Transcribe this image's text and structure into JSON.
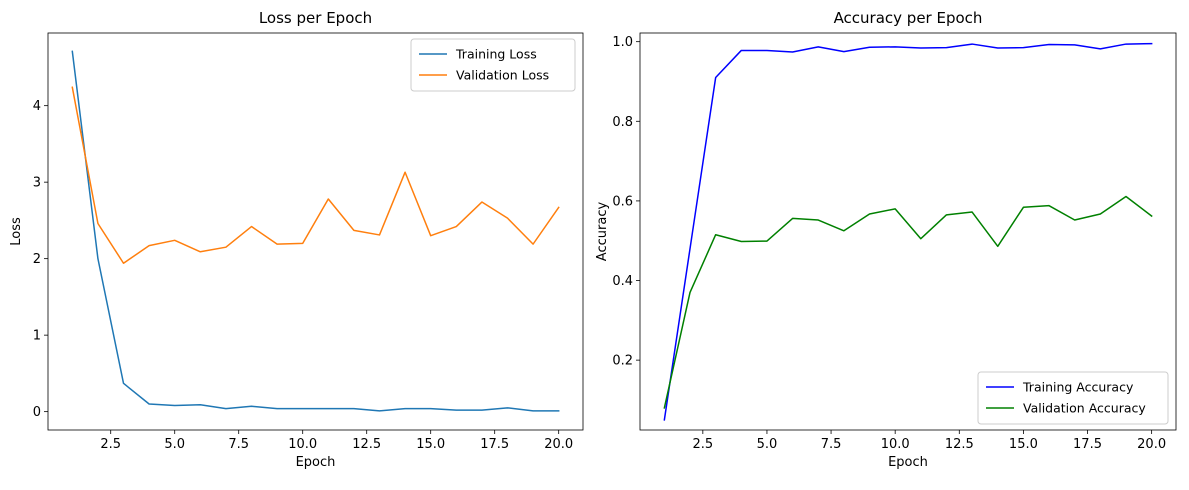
{
  "chart_data": [
    {
      "type": "line",
      "title": "Loss per Epoch",
      "xlabel": "Epoch",
      "ylabel": "Loss",
      "xlim": [
        0.05,
        20.95
      ],
      "ylim": [
        -0.24,
        4.95
      ],
      "xticks": [
        2.5,
        5.0,
        7.5,
        10.0,
        12.5,
        15.0,
        17.5,
        20.0
      ],
      "xtick_labels": [
        "2.5",
        "5.0",
        "7.5",
        "10.0",
        "12.5",
        "15.0",
        "17.5",
        "20.0"
      ],
      "yticks": [
        0,
        1,
        2,
        3,
        4
      ],
      "ytick_labels": [
        "0",
        "1",
        "2",
        "3",
        "4"
      ],
      "grid": false,
      "legend": "top-right",
      "x": [
        1,
        2,
        3,
        4,
        5,
        6,
        7,
        8,
        9,
        10,
        11,
        12,
        13,
        14,
        15,
        16,
        17,
        18,
        19,
        20
      ],
      "series": [
        {
          "name": "Training Loss",
          "color": "#1f77b4",
          "values": [
            4.71,
            2.0,
            0.37,
            0.1,
            0.08,
            0.09,
            0.04,
            0.07,
            0.04,
            0.04,
            0.04,
            0.04,
            0.01,
            0.04,
            0.04,
            0.02,
            0.02,
            0.05,
            0.01,
            0.01
          ]
        },
        {
          "name": "Validation Loss",
          "color": "#ff7f0e",
          "values": [
            4.24,
            2.46,
            1.94,
            2.17,
            2.24,
            2.09,
            2.15,
            2.42,
            2.19,
            2.2,
            2.78,
            2.37,
            2.31,
            3.13,
            2.3,
            2.42,
            2.74,
            2.53,
            2.19,
            2.67
          ]
        }
      ]
    },
    {
      "type": "line",
      "title": "Accuracy per Epoch",
      "xlabel": "Epoch",
      "ylabel": "Accuracy",
      "xlim": [
        0.05,
        20.95
      ],
      "ylim": [
        0.0245,
        1.0218
      ],
      "xticks": [
        2.5,
        5.0,
        7.5,
        10.0,
        12.5,
        15.0,
        17.5,
        20.0
      ],
      "xtick_labels": [
        "2.5",
        "5.0",
        "7.5",
        "10.0",
        "12.5",
        "15.0",
        "17.5",
        "20.0"
      ],
      "yticks": [
        0.2,
        0.4,
        0.6,
        0.8,
        1.0
      ],
      "ytick_labels": [
        "0.2",
        "0.4",
        "0.6",
        "0.8",
        "1.0"
      ],
      "grid": false,
      "legend": "bottom-right",
      "x": [
        1,
        2,
        3,
        4,
        5,
        6,
        7,
        8,
        9,
        10,
        11,
        12,
        13,
        14,
        15,
        16,
        17,
        18,
        19,
        20
      ],
      "series": [
        {
          "name": "Training Accuracy",
          "color": "#0000ff",
          "values": [
            0.05,
            0.48,
            0.91,
            0.978,
            0.978,
            0.974,
            0.987,
            0.975,
            0.986,
            0.987,
            0.984,
            0.985,
            0.994,
            0.984,
            0.985,
            0.993,
            0.992,
            0.982,
            0.994,
            0.995
          ]
        },
        {
          "name": "Validation Accuracy",
          "color": "#008000",
          "values": [
            0.08,
            0.37,
            0.515,
            0.498,
            0.499,
            0.556,
            0.552,
            0.525,
            0.567,
            0.58,
            0.505,
            0.565,
            0.572,
            0.486,
            0.584,
            0.588,
            0.552,
            0.567,
            0.611,
            0.562
          ]
        }
      ]
    }
  ]
}
